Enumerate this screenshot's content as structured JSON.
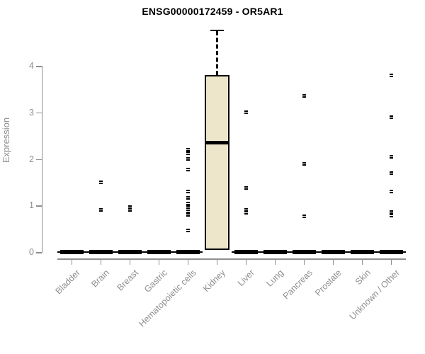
{
  "chart_data": {
    "type": "boxplot",
    "title": "ENSG00000172459 - OR5AR1",
    "xlabel": "",
    "ylabel": "Expression",
    "ylim": [
      0,
      4
    ],
    "yticks": [
      0,
      1,
      2,
      3,
      4
    ],
    "grid": false,
    "legend": "none",
    "categories": [
      "Bladder",
      "Brain",
      "Breast",
      "Gastric",
      "Hematopoietic cells",
      "Kidney",
      "Liver",
      "Lung",
      "Pancreas",
      "Prostate",
      "Skin",
      "Unknown / Other"
    ],
    "boxes": [
      {
        "category": "Bladder",
        "q1": 0,
        "median": 0,
        "q3": 0,
        "whisker_low": 0,
        "whisker_high": 0,
        "points": []
      },
      {
        "category": "Brain",
        "q1": 0,
        "median": 0,
        "q3": 0,
        "whisker_low": 0,
        "whisker_high": 0,
        "points": [
          1.5,
          0.9
        ]
      },
      {
        "category": "Breast",
        "q1": 0,
        "median": 0,
        "q3": 0,
        "whisker_low": 0,
        "whisker_high": 0,
        "points": [
          0.97,
          0.9
        ]
      },
      {
        "category": "Gastric",
        "q1": 0,
        "median": 0,
        "q3": 0,
        "whisker_low": 0,
        "whisker_high": 0,
        "points": []
      },
      {
        "category": "Hematopoietic cells",
        "q1": 0,
        "median": 0,
        "q3": 0,
        "whisker_low": 0,
        "whisker_high": 0,
        "points": [
          2.2,
          2.13,
          2.0,
          1.77,
          1.3,
          1.17,
          1.04,
          0.96,
          0.88,
          0.8,
          0.47
        ]
      },
      {
        "category": "Kidney",
        "q1": 0.05,
        "median": 2.35,
        "q3": 3.81,
        "whisker_low": 0.05,
        "whisker_high": 4.78,
        "points": []
      },
      {
        "category": "Liver",
        "q1": 0,
        "median": 0,
        "q3": 0,
        "whisker_low": 0,
        "whisker_high": 0,
        "points": [
          3.0,
          1.37,
          0.91,
          0.84
        ]
      },
      {
        "category": "Lung",
        "q1": 0,
        "median": 0,
        "q3": 0,
        "whisker_low": 0,
        "whisker_high": 0,
        "points": []
      },
      {
        "category": "Pancreas",
        "q1": 0,
        "median": 0,
        "q3": 0,
        "whisker_low": 0,
        "whisker_high": 0,
        "points": [
          3.35,
          1.89,
          0.77
        ]
      },
      {
        "category": "Prostate",
        "q1": 0,
        "median": 0,
        "q3": 0,
        "whisker_low": 0,
        "whisker_high": 0,
        "points": []
      },
      {
        "category": "Skin",
        "q1": 0,
        "median": 0,
        "q3": 0,
        "whisker_low": 0,
        "whisker_high": 0,
        "points": []
      },
      {
        "category": "Unknown / Other",
        "q1": 0,
        "median": 0,
        "q3": 0,
        "whisker_low": 0,
        "whisker_high": 0,
        "points": [
          3.8,
          2.9,
          2.04,
          1.7,
          1.3,
          0.86,
          0.78
        ]
      }
    ],
    "colors": {
      "box_fill": "#EDE6CB",
      "box_border": "#000000",
      "median": "#000000",
      "point": "#000000",
      "axis": "#8E8E8E",
      "title_text": "#000000",
      "background": "#FFFFFF"
    }
  }
}
